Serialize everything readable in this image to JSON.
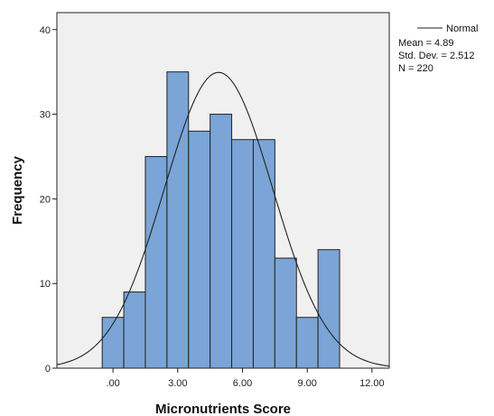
{
  "chart_data": {
    "type": "bar",
    "xlabel": "Micronutrients Score",
    "ylabel": "Frequency",
    "x_ticks": [
      ".00",
      "3.00",
      "6.00",
      "9.00",
      "12.00"
    ],
    "x_tick_values": [
      0,
      3,
      6,
      9,
      12
    ],
    "y_ticks": [
      "0",
      "10",
      "20",
      "30",
      "40"
    ],
    "y_tick_values": [
      0,
      10,
      20,
      30,
      40
    ],
    "xlim": [
      -2.6,
      12.8
    ],
    "ylim": [
      0,
      42
    ],
    "bin_width": 1,
    "bins": [
      {
        "start": -0.5,
        "end": 0.5,
        "count": 6
      },
      {
        "start": 0.5,
        "end": 1.5,
        "count": 9
      },
      {
        "start": 1.5,
        "end": 2.5,
        "count": 25
      },
      {
        "start": 2.5,
        "end": 3.5,
        "count": 35
      },
      {
        "start": 3.5,
        "end": 4.5,
        "count": 28
      },
      {
        "start": 4.5,
        "end": 5.5,
        "count": 30
      },
      {
        "start": 5.5,
        "end": 6.5,
        "count": 27
      },
      {
        "start": 6.5,
        "end": 7.5,
        "count": 27
      },
      {
        "start": 7.5,
        "end": 8.5,
        "count": 13
      },
      {
        "start": 8.5,
        "end": 9.5,
        "count": 6
      },
      {
        "start": 9.5,
        "end": 10.5,
        "count": 14
      }
    ],
    "normal_curve": {
      "mean": 4.89,
      "std": 2.512,
      "n": 220
    },
    "legend": {
      "series_name": "Normal",
      "mean_text": "Mean = 4.89",
      "std_text": "Std. Dev. = 2.512",
      "n_text": "N = 220",
      "placement": "top-right outside plot"
    },
    "colors": {
      "bar_fill": "#7aa5d6",
      "plot_background": "#f0f0f0",
      "curve": "#222222"
    }
  }
}
